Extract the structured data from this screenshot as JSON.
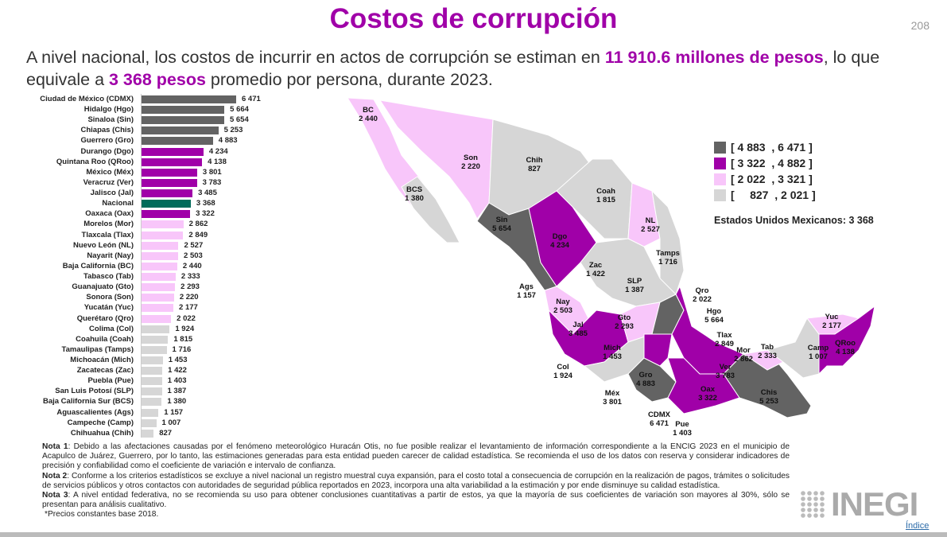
{
  "header": {
    "title": "Costos de corrupción",
    "page_number": "208"
  },
  "intro": {
    "part1": "A nivel nacional, los costos de incurrir en actos de corrupción se estiman en ",
    "highlight1": "11 910.6 millones de pesos",
    "part2": ", lo que equivale a ",
    "highlight2": "3 368 pesos",
    "part3": " promedio por persona, durante 2023."
  },
  "colors": {
    "dark": "#636363",
    "purple": "#a000a8",
    "pink": "#f8c6fa",
    "gray": "#d6d6d6",
    "nacional": "#006b5a"
  },
  "chart_data": {
    "type": "bar",
    "orientation": "horizontal",
    "xlim": [
      0,
      7000
    ],
    "categories": [
      "Ciudad de México (CDMX)",
      "Hidalgo (Hgo)",
      "Sinaloa (Sin)",
      "Chiapas (Chis)",
      "Guerrero (Gro)",
      "Durango (Dgo)",
      "Quintana Roo (QRoo)",
      "México (Méx)",
      "Veracruz (Ver)",
      "Jalisco (Jal)",
      "Nacional",
      "Oaxaca (Oax)",
      "Morelos (Mor)",
      "Tlaxcala (Tlax)",
      "Nuevo León (NL)",
      "Nayarit (Nay)",
      "Baja California (BC)",
      "Tabasco (Tab)",
      "Guanajuato (Gto)",
      "Sonora (Son)",
      "Yucatán (Yuc)",
      "Querétaro (Qro)",
      "Colima (Col)",
      "Coahuila (Coah)",
      "Tamaulipas (Tamps)",
      "Michoacán (Mich)",
      "Zacatecas (Zac)",
      "Puebla (Pue)",
      "San Luis Potosí (SLP)",
      "Baja California Sur (BCS)",
      "Aguascalientes (Ags)",
      "Campeche (Camp)",
      "Chihuahua (Chih)"
    ],
    "values": [
      6471,
      5664,
      5654,
      5253,
      4883,
      4234,
      4138,
      3801,
      3783,
      3485,
      3368,
      3322,
      2862,
      2849,
      2527,
      2503,
      2440,
      2333,
      2293,
      2220,
      2177,
      2022,
      1924,
      1815,
      1716,
      1453,
      1422,
      1403,
      1387,
      1380,
      1157,
      1007,
      827
    ],
    "value_labels": [
      "6 471",
      "5 664",
      "5 654",
      "5 253",
      "4 883",
      "4 234",
      "4 138",
      "3 801",
      "3 783",
      "3 485",
      "3 368",
      "3 322",
      "2 862",
      "2 849",
      "2 527",
      "2 503",
      "2 440",
      "2 333",
      "2 293",
      "2 220",
      "2 177",
      "2 022",
      "1 924",
      "1 815",
      "1 716",
      "1 453",
      "1 422",
      "1 403",
      "1 387",
      "1 380",
      "1 157",
      "1 007",
      "827"
    ],
    "abbr": [
      "CDMX",
      "Hgo",
      "Sin",
      "Chis",
      "Gro",
      "Dgo",
      "QRoo",
      "Méx",
      "Ver",
      "Jal",
      "",
      "Oax",
      "Mor",
      "Tlax",
      "NL",
      "Nay",
      "BC",
      "Tab",
      "Gto",
      "Son",
      "Yuc",
      "Qro",
      "Col",
      "Coah",
      "Tamps",
      "Mich",
      "Zac",
      "Pue",
      "SLP",
      "BCS",
      "Ags",
      "Camp",
      "Chih"
    ]
  },
  "legend": {
    "items": [
      {
        "label": "[ 4 883  , 6 471 ]",
        "color": "#636363"
      },
      {
        "label": "[ 3 322  , 4 882 ]",
        "color": "#a000a8"
      },
      {
        "label": "[ 2 022  , 3 321 ]",
        "color": "#f8c6fa"
      },
      {
        "label": "[     827  , 2 021 ]",
        "color": "#d6d6d6"
      }
    ],
    "national": "Estados Unidos Mexicanos: 3 368"
  },
  "notes": {
    "n1_label": "Nota 1",
    "n1": ": Debido a las afectaciones causadas por el fenómeno meteorológico Huracán Otis, no fue posible realizar el levantamiento de información correspondiente a la ENCIG 2023 en el municipio de Acapulco de Juárez, Guerrero, por lo tanto, las estimaciones generadas para esta entidad pueden carecer de calidad estadística. Se recomienda el uso de los datos con reserva y considerar indicadores de precisión y confiabilidad como el coeficiente de variación e intervalo de confianza.",
    "n2_label": "Nota 2",
    "n2": ": Conforme a los criterios estadísticos se excluye a nivel nacional un registro muestral cuya expansión, para el costo total a consecuencia de corrupción en la realización de pagos, trámites o solicitudes de servicios públicos y otros contactos con autoridades de seguridad pública reportados en 2023, incorpora una alta variabilidad a la estimación y por ende disminuye su calidad estadística.",
    "n3_label": "Nota 3",
    "n3": ": A nivel entidad federativa, no se recomienda su uso para obtener conclusiones cuantitativas a partir de estos, ya que la mayoría de sus coeficientes de variación son mayores al 30%, sólo se presentan para análisis cualitativo.",
    "prices": "*Precios constantes base 2018."
  },
  "footer": {
    "logo": "INEGI",
    "index_link": "Índice"
  }
}
